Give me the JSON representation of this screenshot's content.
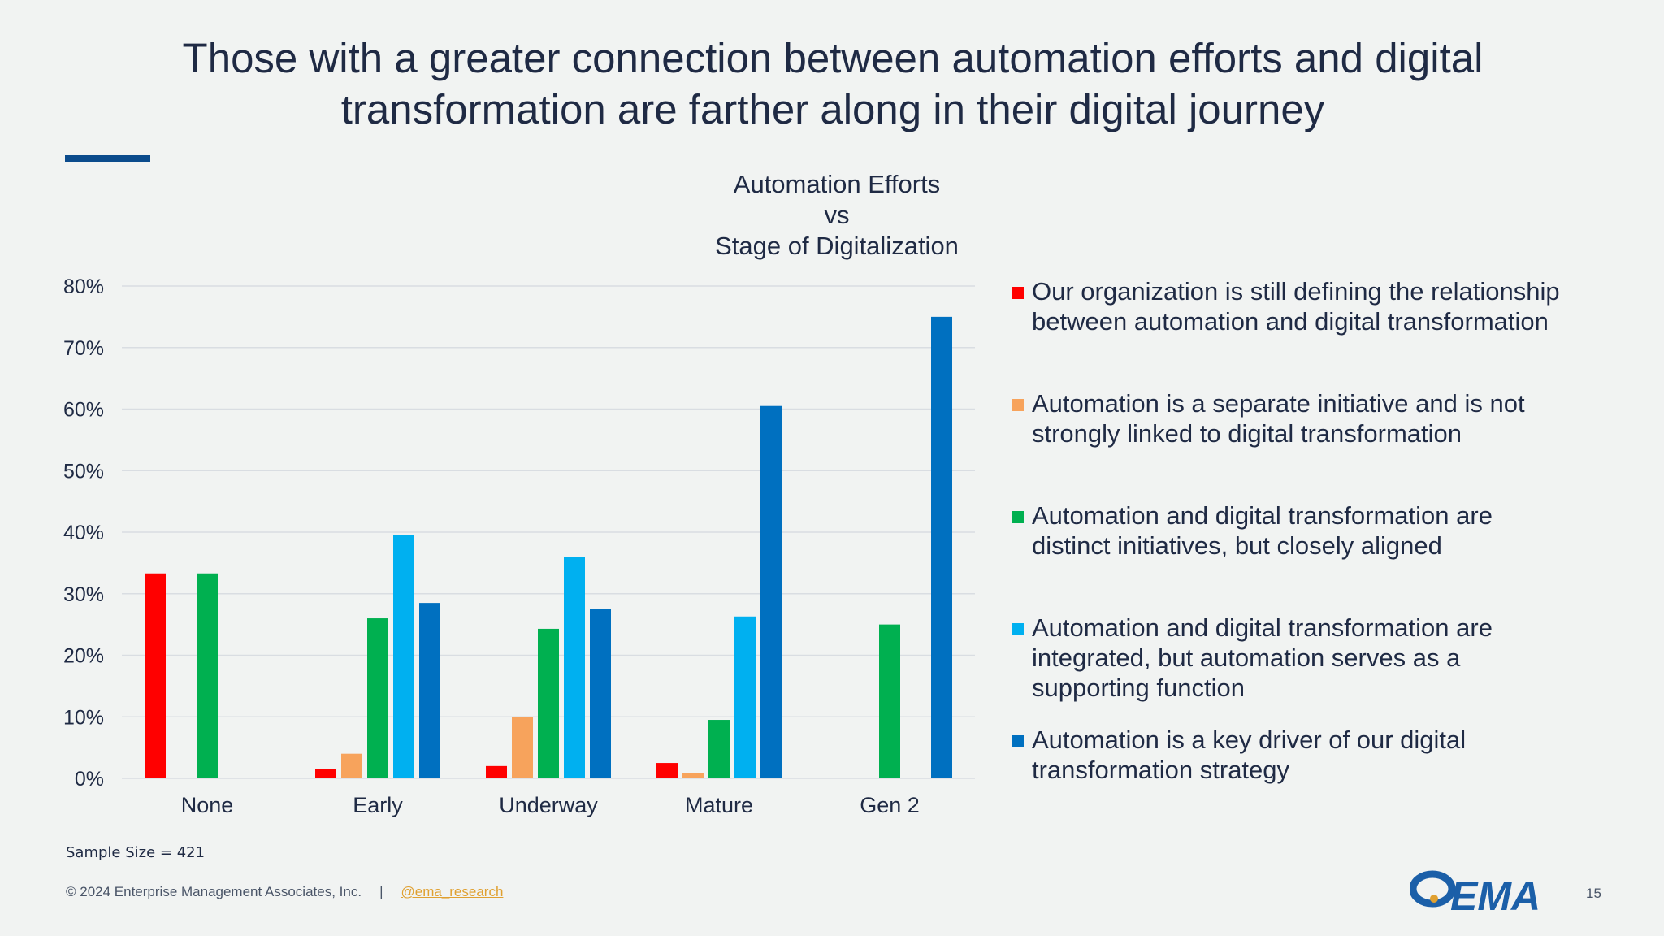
{
  "slide": {
    "title_line1": "Those with a greater connection between automation efforts and digital",
    "title_line2": "transformation are farther along in their digital journey",
    "sample_size": "Sample Size = 421",
    "footer_copyright": "© 2024 Enterprise Management Associates, Inc.",
    "footer_separator": "|",
    "footer_link": "@ema_research",
    "logo_text": "EMA",
    "page_number": "15"
  },
  "colors": {
    "red": "#ff0000",
    "orange": "#f7a35c",
    "green": "#00b050",
    "light_blue": "#00b0f0",
    "dark_blue": "#0070c0",
    "gridline": "#d9dde2",
    "title_bar": "#0b4b8c"
  },
  "chart_data": {
    "type": "bar",
    "title_lines": [
      "Automation Efforts",
      "vs",
      "Stage of Digitalization"
    ],
    "categories": [
      "None",
      "Early",
      "Underway",
      "Mature",
      "Gen 2"
    ],
    "yticks": [
      "0%",
      "10%",
      "20%",
      "30%",
      "40%",
      "50%",
      "60%",
      "70%",
      "80%"
    ],
    "ylim": [
      0,
      80
    ],
    "unit": "%",
    "grid": true,
    "legend_position": "right",
    "series": [
      {
        "name": "Our organization is still defining the relationship between automation and digital transformation",
        "color": "#ff0000",
        "values": [
          33.3,
          1.5,
          2.0,
          2.5,
          0
        ]
      },
      {
        "name": "Automation is a separate initiative and is not strongly linked to digital transformation",
        "color": "#f7a35c",
        "values": [
          0,
          4.0,
          10.0,
          0.8,
          0
        ]
      },
      {
        "name": "Automation and digital transformation are distinct initiatives, but closely aligned",
        "color": "#00b050",
        "values": [
          33.3,
          26.0,
          24.3,
          9.5,
          25.0
        ]
      },
      {
        "name": "Automation and digital transformation are integrated, but automation serves as a supporting function",
        "color": "#00b0f0",
        "values": [
          0,
          39.5,
          36.0,
          26.3,
          0
        ]
      },
      {
        "name": "Automation is a key driver of our digital transformation strategy",
        "color": "#0070c0",
        "values": [
          0,
          28.5,
          27.5,
          60.5,
          75.0
        ]
      }
    ],
    "legend_lines": [
      [
        "Our organization is still defining the relationship",
        "between automation and digital transformation"
      ],
      [
        "Automation is a separate initiative and is not",
        "strongly linked to digital transformation"
      ],
      [
        "Automation and digital transformation are",
        "distinct initiatives, but closely aligned"
      ],
      [
        "Automation and digital transformation are",
        "integrated, but automation serves as a",
        "supporting function"
      ],
      [
        "Automation is a key driver of our digital",
        "transformation strategy"
      ]
    ]
  }
}
